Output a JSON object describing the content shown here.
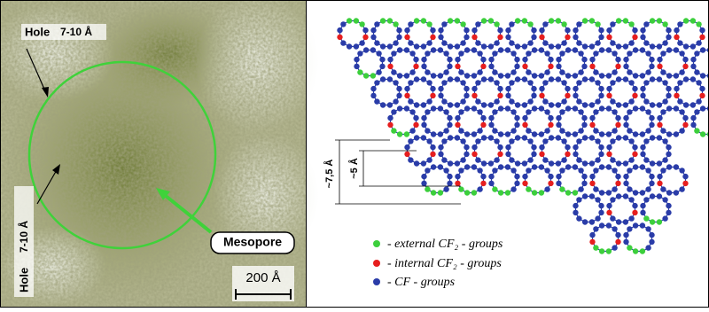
{
  "left_panel": {
    "hole_top": {
      "label": "Hole",
      "size": "7-10 Å"
    },
    "hole_left": {
      "label": "Hole",
      "size": "7-10 Å"
    },
    "mesopore": "Mesopore",
    "scale_bar": "200 Å"
  },
  "right_panel": {
    "dimensions": [
      "~7,5 Å",
      "~5 Å"
    ],
    "legend": [
      "- external CF₂ - groups",
      "- internal CF₂ - groups",
      "- CF - groups"
    ]
  }
}
